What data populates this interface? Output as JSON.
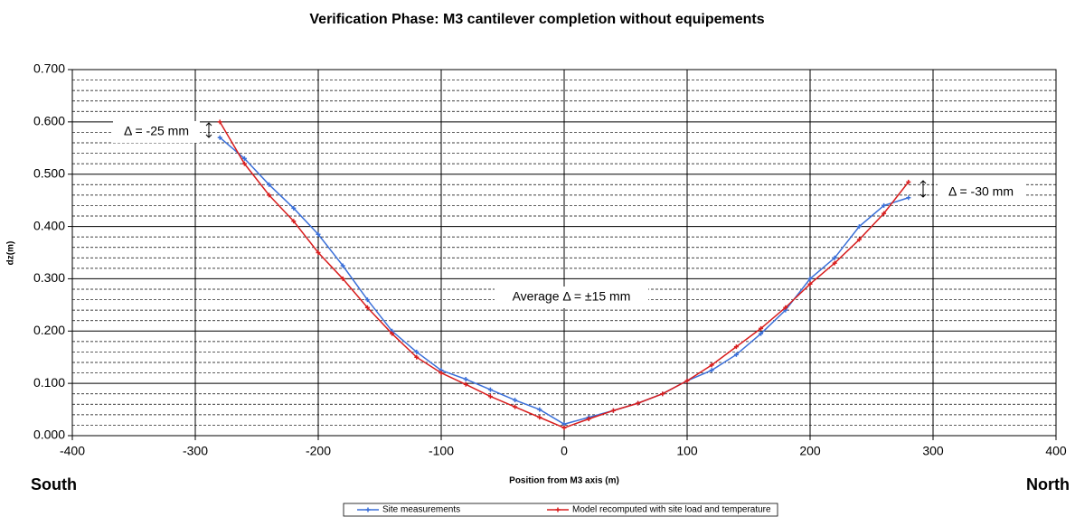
{
  "chart_data": {
    "type": "line",
    "title": "Verification Phase: M3 cantilever completion without equipements",
    "x_label": "Position from M3 axis (m)",
    "y_label": "dz(m)",
    "xlim": [
      -400,
      400
    ],
    "xticks": [
      -400,
      -300,
      -200,
      -100,
      0,
      100,
      200,
      300,
      400
    ],
    "ylim": [
      0,
      0.7
    ],
    "yticks": [
      {
        "value": 0,
        "label": "0.000"
      },
      {
        "value": 0.1,
        "label": "0.100"
      },
      {
        "value": 0.2,
        "label": "0.200"
      },
      {
        "value": 0.3,
        "label": "0.300"
      },
      {
        "value": 0.4,
        "label": "0.400"
      },
      {
        "value": 0.5,
        "label": "0.500"
      },
      {
        "value": 0.6,
        "label": "0.600"
      },
      {
        "value": 0.7,
        "label": "0.700"
      }
    ],
    "y_minor_ticks": [
      0.02,
      0.04,
      0.06,
      0.08,
      0.12,
      0.14,
      0.16,
      0.18,
      0.22,
      0.24,
      0.26,
      0.28,
      0.32,
      0.34,
      0.36,
      0.38,
      0.42,
      0.44,
      0.46,
      0.48,
      0.52,
      0.54,
      0.56,
      0.58,
      0.62,
      0.64,
      0.66,
      0.68
    ],
    "grid": true,
    "legend": "bottom",
    "x": [
      -280,
      -260,
      -240,
      -220,
      -200,
      -180,
      -160,
      -140,
      -120,
      -100,
      -80,
      -60,
      -40,
      -20,
      0,
      20,
      40,
      60,
      80,
      100,
      120,
      140,
      160,
      180,
      200,
      220,
      240,
      260,
      280
    ],
    "series": [
      {
        "name": "Site measurements",
        "color": "#3a6fd8",
        "values": [
          0.57,
          0.53,
          0.48,
          0.435,
          0.385,
          0.325,
          0.26,
          0.2,
          0.16,
          0.125,
          0.108,
          0.088,
          0.068,
          0.05,
          0.022,
          0.035,
          0.048,
          0.062,
          0.08,
          0.105,
          0.125,
          0.155,
          0.195,
          0.24,
          0.3,
          0.34,
          0.4,
          0.44,
          0.455
        ]
      },
      {
        "name": "Model recomputed with site load and temperature",
        "color": "#d81e1e",
        "values": [
          0.6,
          0.52,
          0.46,
          0.41,
          0.35,
          0.3,
          0.245,
          0.195,
          0.15,
          0.12,
          0.098,
          0.075,
          0.055,
          0.035,
          0.015,
          0.032,
          0.048,
          0.062,
          0.08,
          0.105,
          0.135,
          0.17,
          0.205,
          0.245,
          0.29,
          0.33,
          0.375,
          0.425,
          0.485
        ]
      }
    ],
    "annotations": [
      "Δ = -25 mm",
      "Δ = -30 mm",
      "Average Δ = ±15 mm",
      "South",
      "North"
    ]
  }
}
